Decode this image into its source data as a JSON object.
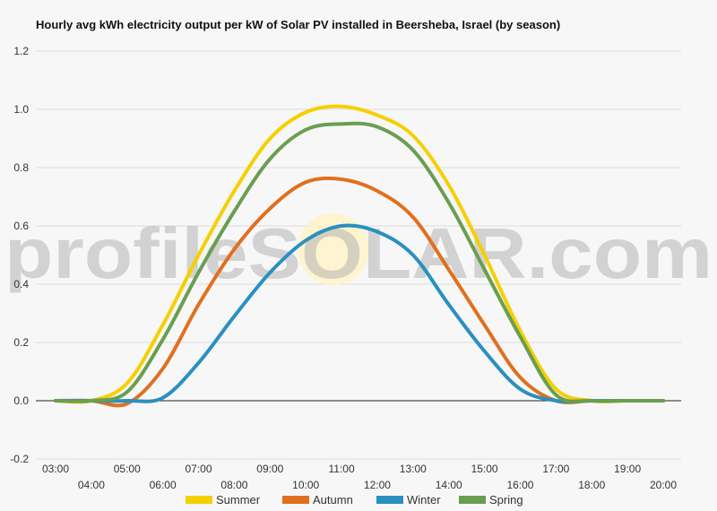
{
  "chart_data": {
    "type": "line",
    "title": "Hourly avg kWh electricity output per kW of Solar PV installed in Beersheba, Israel (by season)",
    "xlabel": "",
    "ylabel": "",
    "x": [
      "03:00",
      "04:00",
      "05:00",
      "06:00",
      "07:00",
      "08:00",
      "09:00",
      "10:00",
      "11:00",
      "12:00",
      "13:00",
      "14:00",
      "15:00",
      "16:00",
      "17:00",
      "18:00",
      "19:00",
      "20:00"
    ],
    "ylim": [
      -0.2,
      1.2
    ],
    "yticks": [
      -0.2,
      0.0,
      0.2,
      0.4,
      0.6,
      0.8,
      1.0,
      1.2
    ],
    "grid": true,
    "legend_position": "bottom",
    "series": [
      {
        "name": "Summer",
        "color": "#f5d000",
        "values": [
          0,
          0,
          0.06,
          0.26,
          0.5,
          0.72,
          0.9,
          0.99,
          1.01,
          0.98,
          0.91,
          0.74,
          0.5,
          0.24,
          0.04,
          0,
          0,
          0
        ]
      },
      {
        "name": "Autumn",
        "color": "#e07020",
        "values": [
          0,
          0,
          -0.01,
          0.11,
          0.33,
          0.52,
          0.66,
          0.75,
          0.76,
          0.72,
          0.63,
          0.45,
          0.26,
          0.08,
          0,
          0,
          0,
          0
        ]
      },
      {
        "name": "Winter",
        "color": "#2a90c0",
        "values": [
          0,
          0,
          0,
          0.01,
          0.13,
          0.29,
          0.44,
          0.55,
          0.6,
          0.58,
          0.5,
          0.33,
          0.17,
          0.04,
          0,
          0,
          0,
          0
        ]
      },
      {
        "name": "Spring",
        "color": "#6a9e50",
        "values": [
          0,
          0,
          0.03,
          0.21,
          0.44,
          0.65,
          0.83,
          0.93,
          0.95,
          0.94,
          0.86,
          0.68,
          0.45,
          0.22,
          0.02,
          0,
          0,
          0
        ]
      }
    ]
  },
  "watermark": "profileSOLAR.com"
}
